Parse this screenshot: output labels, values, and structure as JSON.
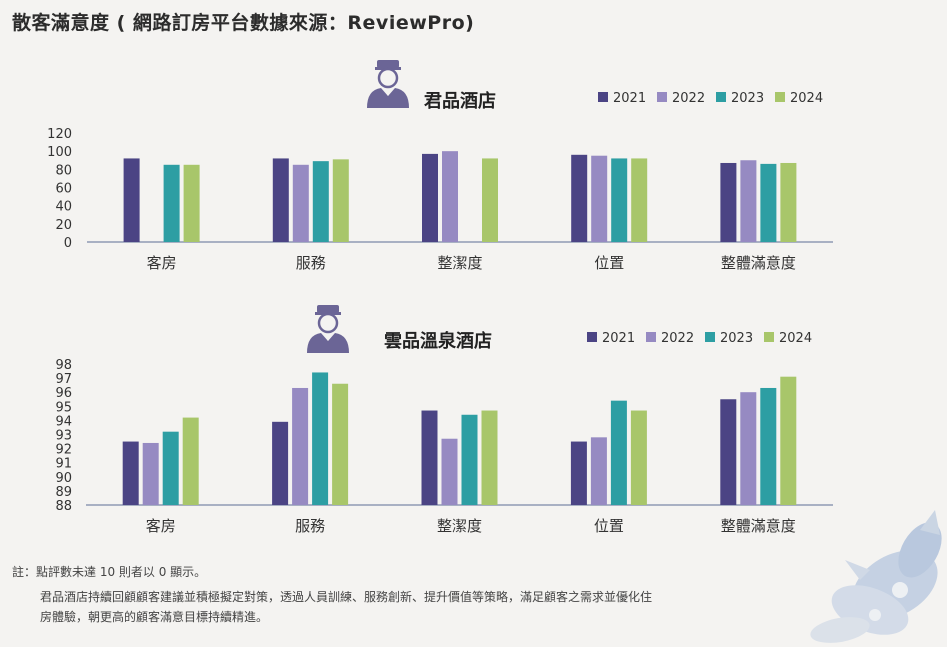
{
  "page": {
    "title": "散客滿意度 ( 網路訂房平台數據來源：ReviewPro)",
    "note": "註：點評數未達 10 則者以 0 顯示。",
    "description_line1": "君品酒店持續回顧顧客建議並積極擬定對策，透過人員訓練、服務創新、提升價值等策略，滿足顧客之需求並優化住",
    "description_line2": "房體驗，朝更高的顧客滿意目標持續精進。"
  },
  "icons": [
    "bellhop-icon",
    "flower-decoration"
  ],
  "colors": {
    "2021": "#4b4484",
    "2022": "#968ac2",
    "2023": "#2d9ea3",
    "2024": "#a8c66a",
    "icon": "#6b6596"
  },
  "chart_data": [
    {
      "type": "bar",
      "title": "君品酒店",
      "categories": [
        "客房",
        "服務",
        "整潔度",
        "位置",
        "整體滿意度"
      ],
      "series": [
        {
          "name": "2021",
          "values": [
            92,
            92,
            97,
            96,
            87
          ]
        },
        {
          "name": "2022",
          "values": [
            0,
            85,
            100,
            95,
            90
          ]
        },
        {
          "name": "2023",
          "values": [
            85,
            89,
            0,
            92,
            86
          ]
        },
        {
          "name": "2024",
          "values": [
            85,
            91,
            92,
            92,
            87
          ]
        }
      ],
      "ylim": [
        0,
        120
      ],
      "yticks": [
        "120",
        "100",
        "80",
        "60",
        "40",
        "20",
        "0"
      ],
      "legend": "top-right",
      "grid": false
    },
    {
      "type": "bar",
      "title": "雲品溫泉酒店",
      "categories": [
        "客房",
        "服務",
        "整潔度",
        "位置",
        "整體滿意度"
      ],
      "series": [
        {
          "name": "2021",
          "values": [
            92.5,
            93.9,
            94.7,
            92.5,
            95.5
          ]
        },
        {
          "name": "2022",
          "values": [
            92.4,
            96.3,
            92.7,
            92.8,
            96.0
          ]
        },
        {
          "name": "2023",
          "values": [
            93.2,
            97.4,
            94.4,
            95.4,
            96.3
          ]
        },
        {
          "name": "2024",
          "values": [
            94.2,
            96.6,
            94.7,
            94.7,
            97.1
          ]
        }
      ],
      "ylim": [
        88,
        98
      ],
      "yticks": [
        "98",
        "97",
        "96",
        "95",
        "94",
        "93",
        "92",
        "91",
        "90",
        "89",
        "88"
      ],
      "legend": "top-right",
      "grid": false
    }
  ]
}
